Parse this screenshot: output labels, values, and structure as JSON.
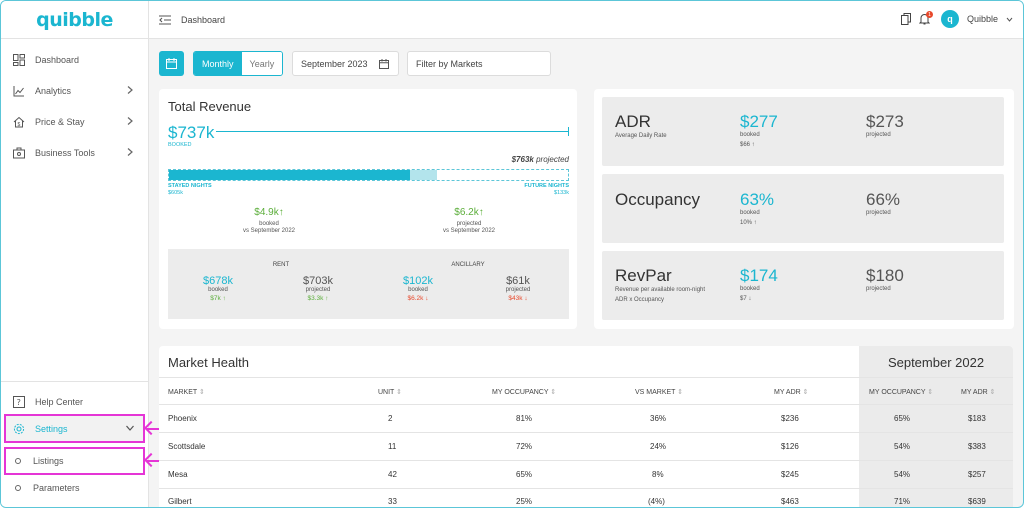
{
  "brand": {
    "logo": "quibble",
    "accent": "#1bb6d0",
    "highlight": "#e535d6"
  },
  "sidebar": {
    "items": [
      {
        "label": "Dashboard",
        "icon": "dashboard-grid-icon"
      },
      {
        "label": "Analytics",
        "icon": "chart-line-icon"
      },
      {
        "label": "Price & Stay",
        "icon": "house-dollar-icon"
      },
      {
        "label": "Business Tools",
        "icon": "briefcase-icon"
      }
    ],
    "help": "Help Center",
    "settings": "Settings",
    "sub_items": [
      "Listings",
      "Parameters"
    ]
  },
  "topbar": {
    "breadcrumb": "Dashboard",
    "user": "Quibble",
    "notifications": "1"
  },
  "filters": {
    "period_monthly": "Monthly",
    "period_yearly": "Yearly",
    "month": "September 2023",
    "markets_placeholder": "Filter by Markets"
  },
  "revenue": {
    "title": "Total Revenue",
    "booked_value": "$737k",
    "booked_label": "BOOKED",
    "projected_value": "$763k",
    "projected_suffix": "projected",
    "stayed_label": "STAYED NIGHTS",
    "stayed_value": "$605k",
    "future_label": "FUTURE NIGHTS",
    "future_value": "$133k",
    "stayed_fraction": 0.605,
    "future_fraction": 0.133,
    "delta_booked": {
      "value": "$4.9k",
      "label": "booked",
      "vs": "vs September 2022"
    },
    "delta_projected": {
      "value": "$6.2k",
      "label": "projected",
      "vs": "vs September 2022"
    },
    "rent": {
      "title": "RENT",
      "booked": "$678k",
      "booked_label": "booked",
      "booked_delta": "$7k",
      "projected": "$703k",
      "projected_label": "projected",
      "projected_delta": "$3.3k"
    },
    "ancillary": {
      "title": "ANCILLARY",
      "booked": "$102k",
      "booked_label": "booked",
      "booked_delta": "$6.2k",
      "projected": "$61k",
      "projected_label": "projected",
      "projected_delta": "$43k"
    }
  },
  "kpis": [
    {
      "name": "ADR",
      "sub1": "Average Daily Rate",
      "sub2": "",
      "booked": "$277",
      "booked_label": "booked",
      "delta": "$66",
      "projected": "$273",
      "projected_label": "projected"
    },
    {
      "name": "Occupancy",
      "sub1": "",
      "sub2": "",
      "booked": "63%",
      "booked_label": "booked",
      "delta": "10%",
      "projected": "66%",
      "projected_label": "projected"
    },
    {
      "name": "RevPar",
      "sub1": "Revenue per available room-night",
      "sub2": "ADR x Occupancy",
      "booked": "$174",
      "booked_label": "booked",
      "delta": "$7",
      "projected": "$180",
      "projected_label": "projected"
    }
  ],
  "market_health": {
    "title": "Market Health",
    "compare_title": "September 2022",
    "columns": [
      "MARKET",
      "UNIT",
      "MY OCCUPANCY",
      "VS MARKET",
      "MY ADR",
      "MY OCCUPANCY",
      "MY ADR"
    ],
    "rows": [
      {
        "market": "Phoenix",
        "unit": "2",
        "occ": "81%",
        "vs": "36%",
        "adr": "$236",
        "prev_occ": "65%",
        "prev_adr": "$183"
      },
      {
        "market": "Scottsdale",
        "unit": "11",
        "occ": "72%",
        "vs": "24%",
        "adr": "$126",
        "prev_occ": "54%",
        "prev_adr": "$383"
      },
      {
        "market": "Mesa",
        "unit": "42",
        "occ": "65%",
        "vs": "8%",
        "adr": "$245",
        "prev_occ": "54%",
        "prev_adr": "$257"
      },
      {
        "market": "Gilbert",
        "unit": "33",
        "occ": "25%",
        "vs": "(4%)",
        "adr": "$463",
        "prev_occ": "71%",
        "prev_adr": "$639"
      }
    ]
  }
}
